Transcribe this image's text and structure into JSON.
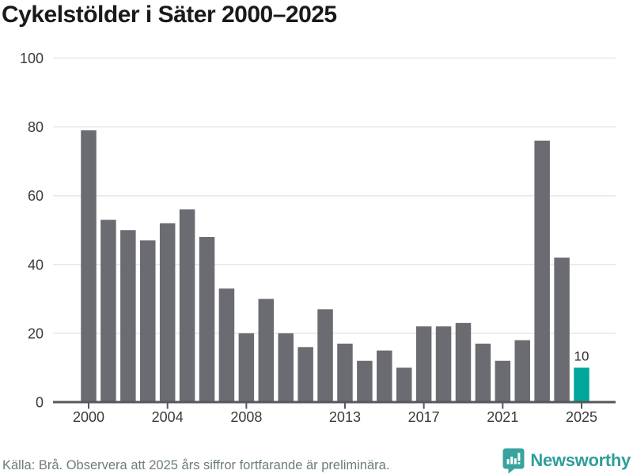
{
  "title": "Cykelstölder i Säter 2000–2025",
  "chart_data": {
    "type": "bar",
    "title": "Cykelstölder i Säter 2000–2025",
    "x": [
      2000,
      2001,
      2002,
      2003,
      2004,
      2005,
      2006,
      2007,
      2008,
      2009,
      2010,
      2011,
      2012,
      2013,
      2014,
      2015,
      2016,
      2017,
      2018,
      2019,
      2020,
      2021,
      2022,
      2023,
      2024,
      2025
    ],
    "values": [
      79,
      53,
      50,
      47,
      52,
      56,
      48,
      33,
      20,
      30,
      20,
      16,
      27,
      17,
      12,
      15,
      10,
      22,
      22,
      23,
      17,
      12,
      18,
      76,
      42,
      10
    ],
    "ylim": [
      0,
      100
    ],
    "y_ticks": [
      0,
      20,
      40,
      60,
      80,
      100
    ],
    "y_tick_labels": [
      "0",
      "20",
      "40",
      "60",
      "80",
      "100"
    ],
    "x_tick_years": [
      2000,
      2004,
      2008,
      2013,
      2017,
      2021,
      2025
    ],
    "x_tick_labels": [
      "2000",
      "2004",
      "2008",
      "2013",
      "2017",
      "2021",
      "2025"
    ],
    "grid": true,
    "legend": false,
    "bar_color": "#6b6b72",
    "grid_color": "#e7e7e7",
    "axis_color": "#55585c",
    "tick_label_color": "#3b3b3b",
    "highlight": {
      "year": 2025,
      "color": "#00a69c",
      "data_label": "10",
      "data_label_color": "#2a2a2a"
    }
  },
  "footer": {
    "source_text": "Källa: Brå. Observera att 2025 års siffror fortfarande är preliminära.",
    "brand_name": "Newsworthy",
    "brand_color": "#2f9e9a",
    "logo_icon": "speech-bubble-bar-chart-icon"
  }
}
